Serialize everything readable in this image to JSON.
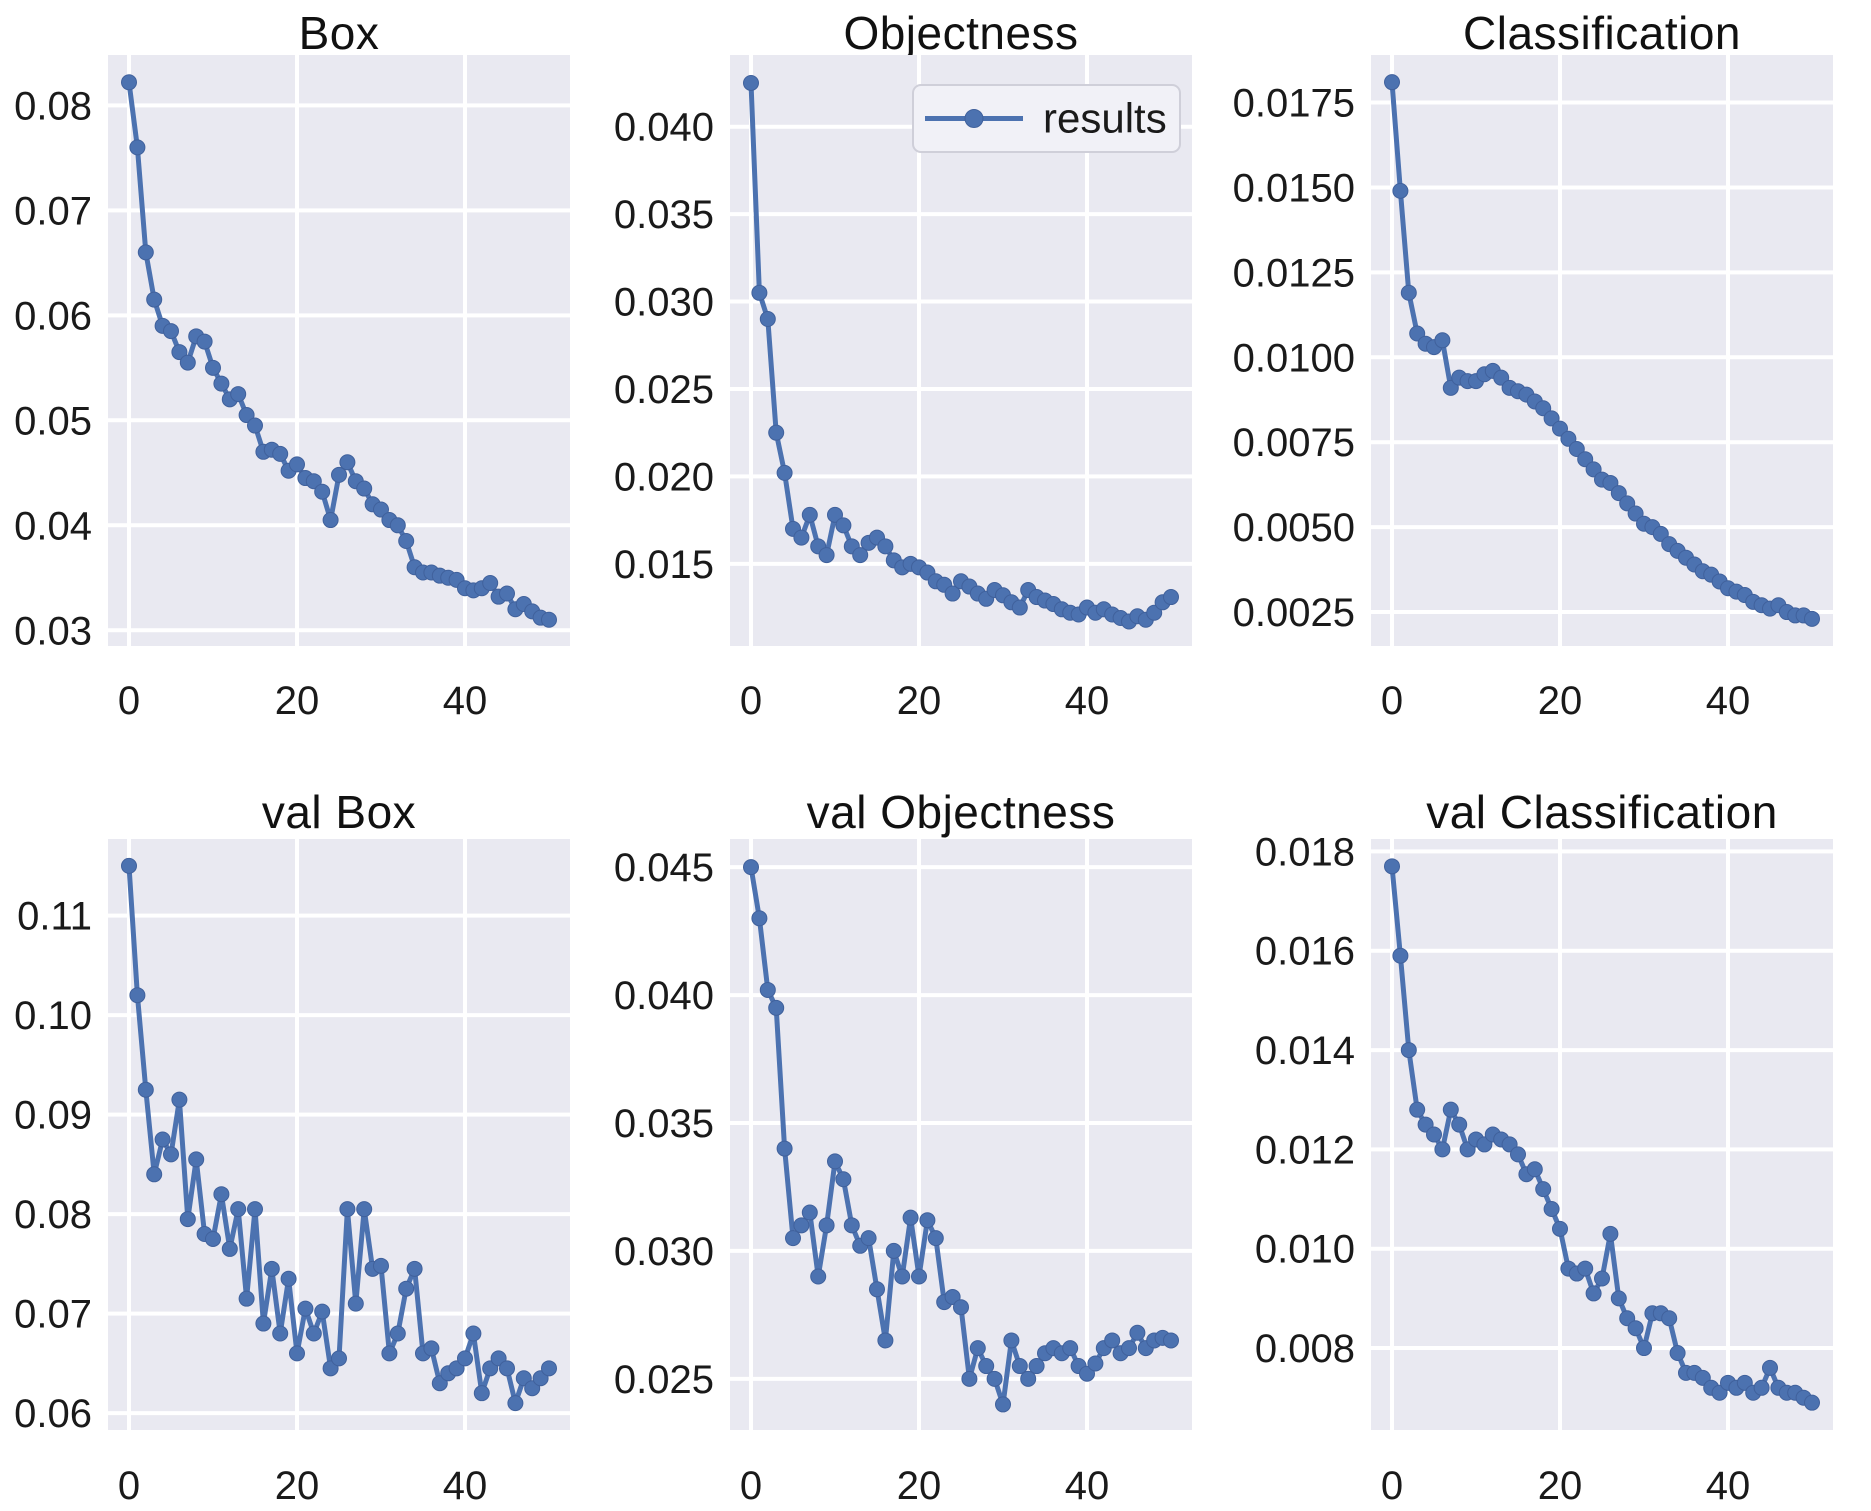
{
  "figure": {
    "line_color": "#4c72b0",
    "marker_edge_color": "#40619c",
    "plot_bg": "#e9e9f1",
    "grid_color": "#ffffff",
    "text_color": "#1a1a1a",
    "legend": {
      "label": "results",
      "position": "upper right",
      "on_chart": "Objectness"
    }
  },
  "chart_data": [
    {
      "type": "line",
      "title": "Box",
      "legend": false,
      "xlim": [
        -2.5,
        52.5
      ],
      "xtick_values": [
        0,
        20,
        40
      ],
      "xtick_labels": [
        "0",
        "20",
        "40"
      ],
      "ylim": [
        0.0285,
        0.0848
      ],
      "ytick_values": [
        0.08,
        0.07,
        0.06,
        0.05,
        0.04,
        0.03
      ],
      "ytick_labels": [
        "0.08",
        "0.07",
        "0.06",
        "0.05",
        "0.04",
        "0.03"
      ],
      "x_start": 0,
      "x_step": 1,
      "values": [
        0.0822,
        0.076,
        0.066,
        0.0615,
        0.059,
        0.0585,
        0.0565,
        0.0555,
        0.058,
        0.0575,
        0.055,
        0.0535,
        0.052,
        0.0525,
        0.0505,
        0.0495,
        0.047,
        0.0472,
        0.0468,
        0.0452,
        0.0458,
        0.0445,
        0.0442,
        0.0432,
        0.0405,
        0.0448,
        0.046,
        0.0442,
        0.0435,
        0.042,
        0.0415,
        0.0405,
        0.04,
        0.0385,
        0.036,
        0.0355,
        0.0355,
        0.0352,
        0.035,
        0.0348,
        0.034,
        0.0338,
        0.034,
        0.0345,
        0.0332,
        0.0335,
        0.032,
        0.0325,
        0.0318,
        0.0312,
        0.031
      ]
    },
    {
      "type": "line",
      "title": "Objectness",
      "legend": true,
      "xlim": [
        -2.5,
        52.5
      ],
      "xtick_values": [
        0,
        20,
        40
      ],
      "xtick_labels": [
        "0",
        "20",
        "40"
      ],
      "ylim": [
        0.0103,
        0.0441
      ],
      "ytick_values": [
        0.04,
        0.035,
        0.03,
        0.025,
        0.02,
        0.015
      ],
      "ytick_labels": [
        "0.040",
        "0.035",
        "0.030",
        "0.025",
        "0.020",
        "0.015"
      ],
      "x_start": 0,
      "x_step": 1,
      "values": [
        0.0425,
        0.0305,
        0.029,
        0.0225,
        0.0202,
        0.017,
        0.0165,
        0.0178,
        0.016,
        0.0155,
        0.0178,
        0.0172,
        0.016,
        0.0155,
        0.0162,
        0.0165,
        0.016,
        0.0152,
        0.0148,
        0.015,
        0.0148,
        0.0145,
        0.014,
        0.0138,
        0.0133,
        0.014,
        0.0137,
        0.0133,
        0.013,
        0.0135,
        0.0132,
        0.0128,
        0.0125,
        0.0135,
        0.0131,
        0.0129,
        0.0127,
        0.0124,
        0.0122,
        0.0121,
        0.0125,
        0.0122,
        0.0124,
        0.0121,
        0.0119,
        0.0117,
        0.012,
        0.0118,
        0.0122,
        0.0128,
        0.0131
      ]
    },
    {
      "type": "line",
      "title": "Classification",
      "legend": false,
      "xlim": [
        -2.5,
        52.5
      ],
      "xtick_values": [
        0,
        20,
        40
      ],
      "xtick_labels": [
        "0",
        "20",
        "40"
      ],
      "ylim": [
        0.0015,
        0.0189
      ],
      "ytick_values": [
        0.0175,
        0.015,
        0.0125,
        0.01,
        0.0075,
        0.005,
        0.0025
      ],
      "ytick_labels": [
        "0.0175",
        "0.0150",
        "0.0125",
        "0.0100",
        "0.0075",
        "0.0050",
        "0.0025"
      ],
      "x_start": 0,
      "x_step": 1,
      "values": [
        0.0181,
        0.0149,
        0.0119,
        0.0107,
        0.0104,
        0.0103,
        0.0105,
        0.0091,
        0.0094,
        0.0093,
        0.0093,
        0.0095,
        0.0096,
        0.0094,
        0.0091,
        0.009,
        0.0089,
        0.0087,
        0.0085,
        0.0082,
        0.0079,
        0.0076,
        0.0073,
        0.007,
        0.0067,
        0.0064,
        0.0063,
        0.006,
        0.0057,
        0.0054,
        0.0051,
        0.005,
        0.0048,
        0.0045,
        0.0043,
        0.0041,
        0.0039,
        0.0037,
        0.0036,
        0.0034,
        0.0032,
        0.0031,
        0.003,
        0.0028,
        0.0027,
        0.0026,
        0.0027,
        0.0025,
        0.0024,
        0.0024,
        0.0023
      ]
    },
    {
      "type": "line",
      "title": "val Box",
      "legend": false,
      "xlim": [
        -2.5,
        52.5
      ],
      "xtick_values": [
        0,
        20,
        40
      ],
      "xtick_labels": [
        "0",
        "20",
        "40"
      ],
      "ylim": [
        0.0583,
        0.1177
      ],
      "ytick_values": [
        0.11,
        0.1,
        0.09,
        0.08,
        0.07,
        0.06
      ],
      "ytick_labels": [
        "0.11",
        "0.10",
        "0.09",
        "0.08",
        "0.07",
        "0.06"
      ],
      "x_start": 0,
      "x_step": 1,
      "values": [
        0.115,
        0.102,
        0.0925,
        0.084,
        0.0875,
        0.086,
        0.0915,
        0.0795,
        0.0855,
        0.078,
        0.0775,
        0.082,
        0.0765,
        0.0805,
        0.0715,
        0.0805,
        0.069,
        0.0745,
        0.068,
        0.0735,
        0.066,
        0.0705,
        0.068,
        0.0702,
        0.0645,
        0.0655,
        0.0805,
        0.071,
        0.0805,
        0.0745,
        0.0748,
        0.066,
        0.068,
        0.0725,
        0.0745,
        0.066,
        0.0665,
        0.063,
        0.064,
        0.0645,
        0.0655,
        0.068,
        0.062,
        0.0645,
        0.0655,
        0.0645,
        0.061,
        0.0635,
        0.0625,
        0.0635,
        0.0645
      ]
    },
    {
      "type": "line",
      "title": "val Objectness",
      "legend": false,
      "xlim": [
        -2.5,
        52.5
      ],
      "xtick_values": [
        0,
        20,
        40
      ],
      "xtick_labels": [
        "0",
        "20",
        "40"
      ],
      "ylim": [
        0.023,
        0.0461
      ],
      "ytick_values": [
        0.045,
        0.04,
        0.035,
        0.03,
        0.025
      ],
      "ytick_labels": [
        "0.045",
        "0.040",
        "0.035",
        "0.030",
        "0.025"
      ],
      "x_start": 0,
      "x_step": 1,
      "values": [
        0.045,
        0.043,
        0.0402,
        0.0395,
        0.034,
        0.0305,
        0.031,
        0.0315,
        0.029,
        0.031,
        0.0335,
        0.0328,
        0.031,
        0.0302,
        0.0305,
        0.0285,
        0.0265,
        0.03,
        0.029,
        0.0313,
        0.029,
        0.0312,
        0.0305,
        0.028,
        0.0282,
        0.0278,
        0.025,
        0.0262,
        0.0255,
        0.025,
        0.024,
        0.0265,
        0.0255,
        0.025,
        0.0255,
        0.026,
        0.0262,
        0.026,
        0.0262,
        0.0255,
        0.0252,
        0.0256,
        0.0262,
        0.0265,
        0.026,
        0.0262,
        0.0268,
        0.0262,
        0.0265,
        0.0266,
        0.0265
      ]
    },
    {
      "type": "line",
      "title": "val Classification",
      "legend": false,
      "xlim": [
        -2.5,
        52.5
      ],
      "xtick_values": [
        0,
        20,
        40
      ],
      "xtick_labels": [
        "0",
        "20",
        "40"
      ],
      "ylim": [
        0.00635,
        0.01825
      ],
      "ytick_values": [
        0.018,
        0.016,
        0.014,
        0.012,
        0.01,
        0.008
      ],
      "ytick_labels": [
        "0.018",
        "0.016",
        "0.014",
        "0.012",
        "0.010",
        "0.008"
      ],
      "x_start": 0,
      "x_step": 1,
      "values": [
        0.0177,
        0.0159,
        0.014,
        0.0128,
        0.0125,
        0.0123,
        0.012,
        0.0128,
        0.0125,
        0.012,
        0.0122,
        0.0121,
        0.0123,
        0.0122,
        0.0121,
        0.0119,
        0.0115,
        0.0116,
        0.0112,
        0.0108,
        0.0104,
        0.0096,
        0.0095,
        0.0096,
        0.0091,
        0.0094,
        0.0103,
        0.009,
        0.0086,
        0.0084,
        0.008,
        0.0087,
        0.0087,
        0.0086,
        0.0079,
        0.0075,
        0.0075,
        0.0074,
        0.0072,
        0.0071,
        0.0073,
        0.0072,
        0.0073,
        0.0071,
        0.0072,
        0.0076,
        0.0072,
        0.0071,
        0.0071,
        0.007,
        0.0069
      ]
    }
  ]
}
